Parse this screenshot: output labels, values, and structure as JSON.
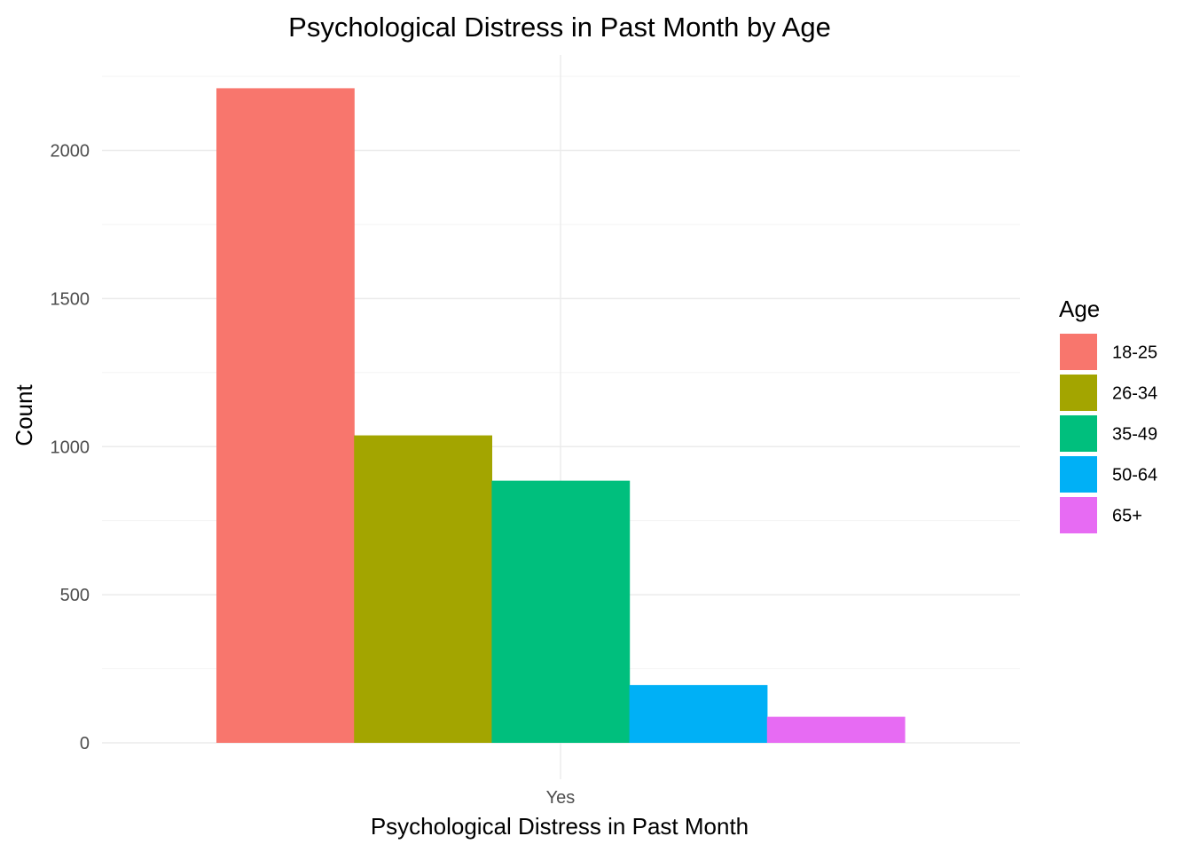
{
  "chart_data": {
    "type": "bar",
    "title": "Psychological Distress in Past Month by Age",
    "xlabel": "Psychological Distress in Past Month",
    "ylabel": "Count",
    "categories": [
      "Yes"
    ],
    "series": [
      {
        "name": "18-25",
        "values": [
          2210
        ],
        "color": "#F8766D"
      },
      {
        "name": "26-34",
        "values": [
          1038
        ],
        "color": "#A3A500"
      },
      {
        "name": "35-49",
        "values": [
          885
        ],
        "color": "#00BF7D"
      },
      {
        "name": "50-64",
        "values": [
          195
        ],
        "color": "#00B0F6"
      },
      {
        "name": "65+",
        "values": [
          88
        ],
        "color": "#E76BF3"
      }
    ],
    "ylim": [
      0,
      2250
    ],
    "yticks": [
      0,
      500,
      1000,
      1500,
      2000
    ],
    "grid": true,
    "legend": {
      "title": "Age",
      "placement": "right"
    }
  }
}
